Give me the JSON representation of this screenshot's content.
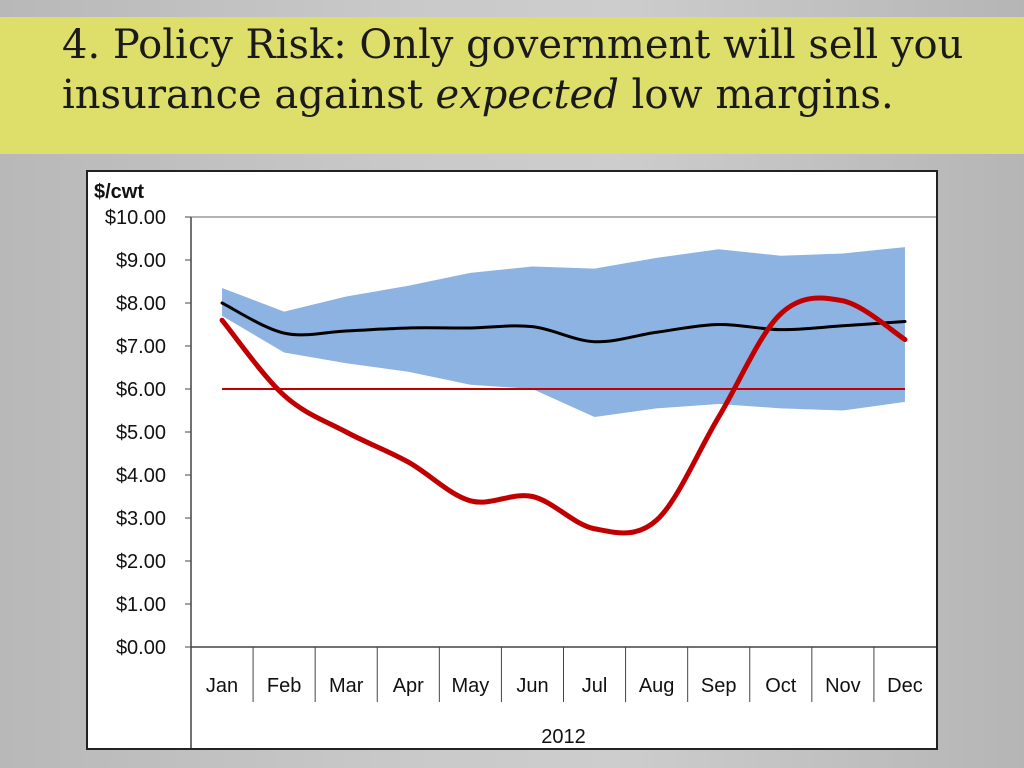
{
  "slide": {
    "title_part1": "4. Policy Risk: Only government will sell you insurance against",
    "title_emph": "expected",
    "title_part2": "low margins."
  },
  "chart_data": {
    "type": "line",
    "ylabel": "$/cwt",
    "xlabel": "2012",
    "categories": [
      "Jan",
      "Feb",
      "Mar",
      "Apr",
      "May",
      "Jun",
      "Jul",
      "Aug",
      "Sep",
      "Oct",
      "Nov",
      "Dec"
    ],
    "yticks": [
      "$0.00",
      "$1.00",
      "$2.00",
      "$3.00",
      "$4.00",
      "$5.00",
      "$6.00",
      "$7.00",
      "$8.00",
      "$9.00",
      "$10.00"
    ],
    "ylim": [
      0,
      10
    ],
    "band": {
      "upper": [
        8.35,
        7.8,
        8.15,
        8.4,
        8.7,
        8.85,
        8.8,
        9.05,
        9.25,
        9.1,
        9.15,
        9.3
      ],
      "lower": [
        7.7,
        6.85,
        6.6,
        6.4,
        6.1,
        6.0,
        5.35,
        5.55,
        5.65,
        5.55,
        5.5,
        5.7
      ],
      "color": "#8db3e2"
    },
    "series": [
      {
        "values": [
          8.0,
          7.3,
          7.35,
          7.42,
          7.42,
          7.45,
          7.1,
          7.32,
          7.5,
          7.38,
          7.47,
          7.57
        ],
        "color": "#000000"
      },
      {
        "values": [
          7.6,
          5.85,
          5.0,
          4.3,
          3.4,
          3.5,
          2.75,
          2.95,
          5.35,
          7.75,
          8.05,
          7.15
        ],
        "color": "#c00000"
      }
    ],
    "reference_line": {
      "value": 6.0,
      "color": "#c00000"
    },
    "grid": false
  }
}
